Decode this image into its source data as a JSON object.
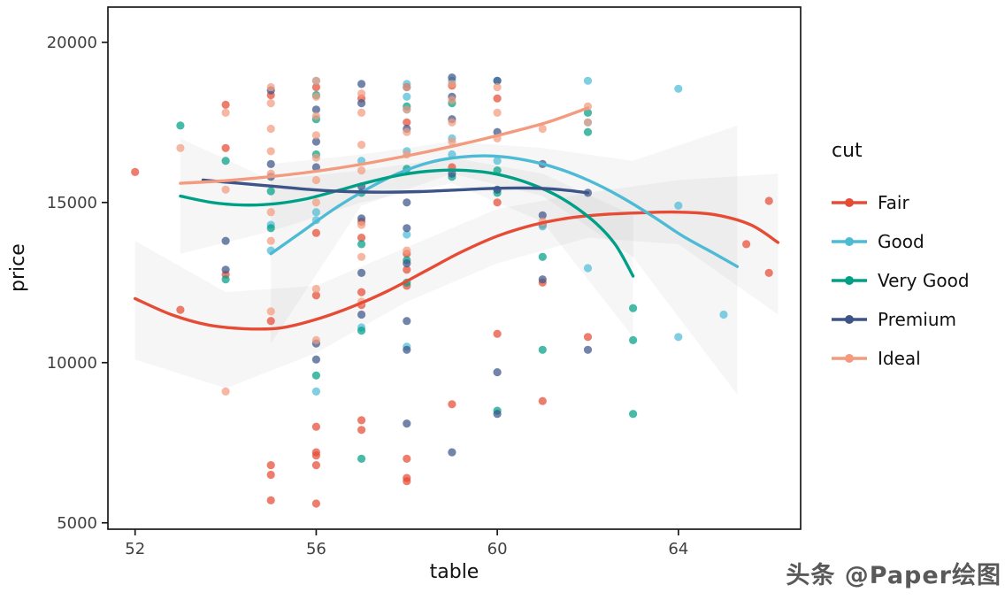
{
  "watermark": "头条 @Paper绘图",
  "chart_data": {
    "type": "scatter",
    "title": "",
    "xlabel": "table",
    "ylabel": "price",
    "legend_title": "cut",
    "legend_position": "right",
    "grid": false,
    "x_ticks": [
      52,
      56,
      60,
      64
    ],
    "y_ticks": [
      5000,
      10000,
      15000,
      20000
    ],
    "xlim": [
      51.4,
      66.7
    ],
    "ylim": [
      4800,
      21100
    ],
    "ribbons": [
      {
        "fill": "#8c8c8c",
        "opacity": 0.08,
        "polygon": [
          [
            52,
            13800
          ],
          [
            54,
            12200
          ],
          [
            56,
            12400
          ],
          [
            58,
            13600
          ],
          [
            60,
            14800
          ],
          [
            62,
            15300
          ],
          [
            64,
            15700
          ],
          [
            66.2,
            15900
          ],
          [
            66.2,
            11500
          ],
          [
            64,
            13700
          ],
          [
            62,
            13900
          ],
          [
            60,
            13100
          ],
          [
            58,
            11900
          ],
          [
            56,
            10300
          ],
          [
            54,
            9200
          ],
          [
            52,
            10100
          ]
        ]
      },
      {
        "fill": "#8c8c8c",
        "opacity": 0.08,
        "polygon": [
          [
            55,
            16200
          ],
          [
            57,
            16500
          ],
          [
            59,
            16900
          ],
          [
            61,
            16700
          ],
          [
            63,
            16300
          ],
          [
            65.3,
            17400
          ],
          [
            65.3,
            9000
          ],
          [
            63,
            13300
          ],
          [
            61,
            15200
          ],
          [
            59,
            15900
          ],
          [
            57,
            14900
          ],
          [
            55,
            10600
          ]
        ]
      },
      {
        "fill": "#8c8c8c",
        "opacity": 0.08,
        "polygon": [
          [
            53,
            17000
          ],
          [
            55,
            15700
          ],
          [
            57,
            16000
          ],
          [
            59,
            16400
          ],
          [
            61,
            15900
          ],
          [
            63,
            14600
          ],
          [
            63,
            10800
          ],
          [
            61,
            14400
          ],
          [
            59,
            15600
          ],
          [
            57,
            15000
          ],
          [
            55,
            14100
          ],
          [
            53,
            13400
          ]
        ]
      }
    ],
    "series": [
      {
        "name": "Fair",
        "color": "#E64B35",
        "points": [
          [
            52,
            15950
          ],
          [
            53,
            11650
          ],
          [
            54,
            18050
          ],
          [
            54,
            12750
          ],
          [
            54,
            16700
          ],
          [
            55,
            18350
          ],
          [
            55,
            11300
          ],
          [
            55,
            6800
          ],
          [
            55,
            6500
          ],
          [
            55,
            5700
          ],
          [
            56,
            18600
          ],
          [
            56,
            14050
          ],
          [
            56,
            12100
          ],
          [
            56,
            8000
          ],
          [
            56,
            7200
          ],
          [
            56,
            7100
          ],
          [
            56,
            6800
          ],
          [
            56,
            5600
          ],
          [
            57,
            18250
          ],
          [
            57,
            14400
          ],
          [
            57,
            13900
          ],
          [
            57,
            12200
          ],
          [
            57,
            11800
          ],
          [
            57,
            8200
          ],
          [
            57,
            7900
          ],
          [
            58,
            17500
          ],
          [
            58,
            13400
          ],
          [
            58,
            12900
          ],
          [
            58,
            12400
          ],
          [
            58,
            7000
          ],
          [
            58,
            6400
          ],
          [
            58,
            6300
          ],
          [
            59,
            18650
          ],
          [
            59,
            16100
          ],
          [
            59,
            8700
          ],
          [
            60,
            18250
          ],
          [
            60,
            15000
          ],
          [
            60,
            10900
          ],
          [
            61,
            14300
          ],
          [
            61,
            12500
          ],
          [
            61,
            8800
          ],
          [
            62,
            10800
          ],
          [
            66,
            15050
          ],
          [
            66,
            12800
          ],
          [
            65.5,
            13700
          ]
        ],
        "smooth": [
          [
            52,
            12000
          ],
          [
            52.8,
            11500
          ],
          [
            53.6,
            11180
          ],
          [
            54.4,
            11060
          ],
          [
            55.2,
            11080
          ],
          [
            56,
            11350
          ],
          [
            56.8,
            11750
          ],
          [
            57.6,
            12250
          ],
          [
            58.4,
            12850
          ],
          [
            59.2,
            13450
          ],
          [
            60,
            13950
          ],
          [
            60.8,
            14300
          ],
          [
            61.6,
            14520
          ],
          [
            62.4,
            14630
          ],
          [
            63.2,
            14680
          ],
          [
            64,
            14700
          ],
          [
            64.8,
            14620
          ],
          [
            65.6,
            14300
          ],
          [
            66.2,
            13750
          ]
        ]
      },
      {
        "name": "Good",
        "color": "#4DBBD5",
        "points": [
          [
            55,
            14300
          ],
          [
            55,
            13500
          ],
          [
            56,
            18800
          ],
          [
            56,
            14700
          ],
          [
            56,
            14450
          ],
          [
            56,
            9100
          ],
          [
            57,
            16300
          ],
          [
            57,
            11100
          ],
          [
            58,
            18700
          ],
          [
            58,
            18300
          ],
          [
            58,
            17900
          ],
          [
            58,
            16600
          ],
          [
            58,
            14000
          ],
          [
            58,
            10500
          ],
          [
            59,
            18800
          ],
          [
            59,
            17000
          ],
          [
            59,
            16500
          ],
          [
            60,
            18800
          ],
          [
            60,
            16300
          ],
          [
            60,
            15400
          ],
          [
            61,
            14250
          ],
          [
            62,
            18800
          ],
          [
            62,
            17500
          ],
          [
            62,
            12950
          ],
          [
            64,
            18550
          ],
          [
            64,
            14900
          ],
          [
            64,
            10800
          ],
          [
            65,
            11500
          ]
        ],
        "smooth": [
          [
            55,
            13400
          ],
          [
            55.7,
            14100
          ],
          [
            56.4,
            14800
          ],
          [
            57.1,
            15400
          ],
          [
            57.8,
            15900
          ],
          [
            58.5,
            16250
          ],
          [
            59.2,
            16420
          ],
          [
            59.9,
            16450
          ],
          [
            60.6,
            16330
          ],
          [
            61.3,
            16080
          ],
          [
            62,
            15700
          ],
          [
            62.7,
            15200
          ],
          [
            63.4,
            14600
          ],
          [
            64.1,
            13950
          ],
          [
            64.8,
            13400
          ],
          [
            65.3,
            13000
          ]
        ]
      },
      {
        "name": "Very Good",
        "color": "#00A087",
        "points": [
          [
            53,
            17400
          ],
          [
            54,
            16300
          ],
          [
            54,
            12600
          ],
          [
            55,
            15350
          ],
          [
            55,
            14200
          ],
          [
            56,
            18350
          ],
          [
            56,
            17600
          ],
          [
            56,
            16500
          ],
          [
            56,
            9600
          ],
          [
            57,
            15300
          ],
          [
            57,
            13700
          ],
          [
            57,
            11000
          ],
          [
            57,
            7000
          ],
          [
            58,
            18000
          ],
          [
            58,
            16050
          ],
          [
            58,
            13200
          ],
          [
            58,
            12500
          ],
          [
            59,
            18100
          ],
          [
            59,
            15800
          ],
          [
            60,
            16000
          ],
          [
            60,
            15300
          ],
          [
            60,
            8500
          ],
          [
            61,
            13300
          ],
          [
            61,
            10400
          ],
          [
            62,
            17800
          ],
          [
            62,
            17200
          ],
          [
            63,
            11700
          ],
          [
            63,
            10700
          ],
          [
            63,
            8400
          ]
        ],
        "smooth": [
          [
            53,
            15200
          ],
          [
            53.7,
            15000
          ],
          [
            54.4,
            14920
          ],
          [
            55.1,
            14960
          ],
          [
            55.8,
            15120
          ],
          [
            56.5,
            15380
          ],
          [
            57.2,
            15650
          ],
          [
            57.9,
            15870
          ],
          [
            58.6,
            15990
          ],
          [
            59.3,
            16000
          ],
          [
            60,
            15880
          ],
          [
            60.7,
            15600
          ],
          [
            61.4,
            15150
          ],
          [
            62.1,
            14450
          ],
          [
            62.6,
            13700
          ],
          [
            63,
            12700
          ]
        ]
      },
      {
        "name": "Premium",
        "color": "#3C5488",
        "points": [
          [
            54,
            13800
          ],
          [
            54,
            12900
          ],
          [
            55,
            18500
          ],
          [
            55,
            16200
          ],
          [
            55,
            15800
          ],
          [
            56,
            17900
          ],
          [
            56,
            16900
          ],
          [
            56,
            16100
          ],
          [
            56,
            10600
          ],
          [
            56,
            10100
          ],
          [
            57,
            18700
          ],
          [
            57,
            18100
          ],
          [
            57,
            15500
          ],
          [
            57,
            14500
          ],
          [
            57,
            12800
          ],
          [
            57,
            11500
          ],
          [
            58,
            18600
          ],
          [
            58,
            17300
          ],
          [
            58,
            15000
          ],
          [
            58,
            14200
          ],
          [
            58,
            13100
          ],
          [
            58,
            11300
          ],
          [
            58,
            10400
          ],
          [
            58,
            8100
          ],
          [
            59,
            18900
          ],
          [
            59,
            18300
          ],
          [
            59,
            17600
          ],
          [
            59,
            15900
          ],
          [
            59,
            7200
          ],
          [
            60,
            18800
          ],
          [
            60,
            17200
          ],
          [
            60,
            15400
          ],
          [
            60,
            9700
          ],
          [
            60,
            8400
          ],
          [
            61,
            16200
          ],
          [
            61,
            14600
          ],
          [
            61,
            12600
          ],
          [
            62,
            15300
          ],
          [
            62,
            10400
          ]
        ],
        "smooth": [
          [
            53.5,
            15700
          ],
          [
            54.3,
            15600
          ],
          [
            55.1,
            15500
          ],
          [
            55.9,
            15400
          ],
          [
            56.7,
            15340
          ],
          [
            57.5,
            15320
          ],
          [
            58.3,
            15340
          ],
          [
            59.1,
            15390
          ],
          [
            59.9,
            15440
          ],
          [
            60.7,
            15450
          ],
          [
            61.4,
            15400
          ],
          [
            62,
            15300
          ]
        ]
      },
      {
        "name": "Ideal",
        "color": "#F39B7F",
        "points": [
          [
            53,
            16700
          ],
          [
            54,
            17800
          ],
          [
            54,
            15400
          ],
          [
            54,
            9100
          ],
          [
            55,
            18600
          ],
          [
            55,
            18100
          ],
          [
            55,
            17300
          ],
          [
            55,
            16600
          ],
          [
            55,
            15900
          ],
          [
            55,
            14700
          ],
          [
            55,
            13800
          ],
          [
            55,
            11600
          ],
          [
            56,
            18800
          ],
          [
            56,
            18300
          ],
          [
            56,
            17700
          ],
          [
            56,
            17100
          ],
          [
            56,
            16400
          ],
          [
            56,
            15700
          ],
          [
            56,
            15000
          ],
          [
            56,
            12300
          ],
          [
            56,
            10700
          ],
          [
            57,
            18400
          ],
          [
            57,
            17800
          ],
          [
            57,
            16800
          ],
          [
            57,
            16000
          ],
          [
            57,
            14300
          ],
          [
            57,
            13300
          ],
          [
            57,
            11900
          ],
          [
            58,
            18600
          ],
          [
            58,
            17900
          ],
          [
            58,
            17200
          ],
          [
            58,
            16500
          ],
          [
            58,
            13500
          ],
          [
            59,
            18700
          ],
          [
            59,
            18200
          ],
          [
            59,
            17500
          ],
          [
            59,
            16900
          ],
          [
            60,
            18600
          ],
          [
            60,
            17800
          ],
          [
            60,
            17000
          ],
          [
            61,
            17300
          ],
          [
            61,
            14400
          ],
          [
            62,
            18000
          ],
          [
            62,
            17500
          ]
        ],
        "smooth": [
          [
            53,
            15600
          ],
          [
            53.9,
            15670
          ],
          [
            54.8,
            15780
          ],
          [
            55.7,
            15920
          ],
          [
            56.6,
            16100
          ],
          [
            57.5,
            16320
          ],
          [
            58.4,
            16570
          ],
          [
            59.3,
            16850
          ],
          [
            60.2,
            17160
          ],
          [
            61.1,
            17500
          ],
          [
            62,
            17950
          ]
        ]
      }
    ]
  }
}
